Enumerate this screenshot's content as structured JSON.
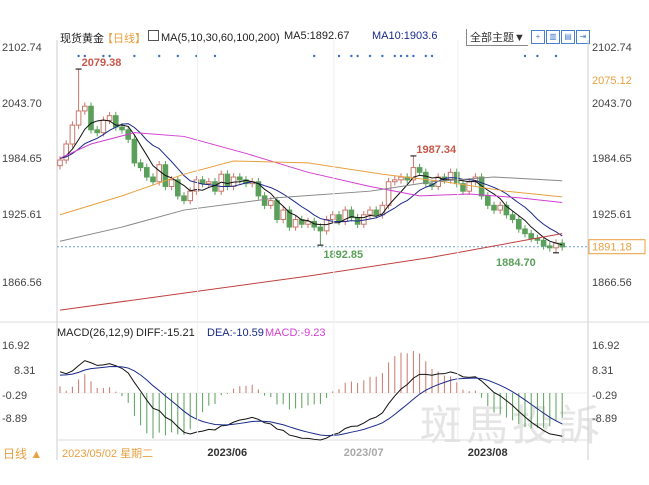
{
  "header": {
    "instrument": "现货黄金",
    "period": "【日线】",
    "ma_label": "MA(5,10,30,60,100,200)",
    "ma5": "MA5:1892.67",
    "ma10": "MA10:1903.6",
    "theme_button": "全部主题▼",
    "icons": [
      "crosshair-icon",
      "zoom-in-icon",
      "zoom-out-icon",
      "jump-end-icon"
    ]
  },
  "macd_header": {
    "label": "MACD(26,12,9)",
    "diff": "DIFF:-15.21",
    "dea": "DEA:-10.59",
    "macd": "MACD:-9.23"
  },
  "footer": {
    "period_button": "日线 ▲",
    "cursor_date": "2023/05/02 星期二"
  },
  "watermark": "斑馬投訴 ZEBRA",
  "colors": {
    "up": "#c9776b",
    "down": "#5aa05a",
    "ma5": "#111111",
    "ma10": "#1a2a8a",
    "ma30": "#d23fd2",
    "ma60": "#e8a040",
    "ma100": "#888888",
    "ma200": "#c04040",
    "last": "#e8a040"
  },
  "chart_data": [
    {
      "type": "candlestick",
      "title": "现货黄金 日线",
      "y_axis_labels": [
        "2102.74",
        "2043.70",
        "1984.65",
        "1925.61",
        "1866.56"
      ],
      "y_axis_right_labels": [
        "2102.74",
        "2075.12",
        "2043.70",
        "1984.65",
        "1925.61",
        "1866.56"
      ],
      "ylim": [
        1850,
        2110
      ],
      "last_price": "1891.18",
      "annotations": [
        {
          "text": "2079.38",
          "index": 3,
          "value": 2079.38
        },
        {
          "text": "1987.34",
          "index": 57,
          "value": 1987.34
        },
        {
          "text": "1892.85",
          "index": 42,
          "value": 1892.85
        },
        {
          "text": "1884.70",
          "index": 80,
          "value": 1884.7
        }
      ],
      "x_labels": [
        {
          "text": "2023/06",
          "index": 27
        },
        {
          "text": "2023/07",
          "index": 49
        },
        {
          "text": "2023/08",
          "index": 69
        }
      ],
      "closes": [
        1983,
        2000,
        2020,
        2035,
        2040,
        2015,
        2012,
        2025,
        2030,
        2018,
        2015,
        2005,
        1980,
        1975,
        1965,
        1960,
        1978,
        1955,
        1962,
        1945,
        1940,
        1950,
        1962,
        1958,
        1960,
        1950,
        1968,
        1955,
        1965,
        1962,
        1958,
        1960,
        1945,
        1935,
        1940,
        1920,
        1930,
        1912,
        1920,
        1915,
        1918,
        1912,
        1908,
        1920,
        1925,
        1918,
        1930,
        1922,
        1915,
        1925,
        1930,
        1925,
        1935,
        1960,
        1962,
        1965,
        1962,
        1975,
        1970,
        1958,
        1955,
        1965,
        1962,
        1970,
        1958,
        1950,
        1960,
        1965,
        1945,
        1935,
        1930,
        1935,
        1925,
        1920,
        1910,
        1905,
        1900,
        1898,
        1892,
        1890,
        1895,
        1891
      ],
      "ma_series": {
        "ma30": [
          [
            0,
            1985
          ],
          [
            5,
            2000
          ],
          [
            12,
            2012
          ],
          [
            20,
            2008
          ],
          [
            30,
            1990
          ],
          [
            40,
            1970
          ],
          [
            50,
            1955
          ],
          [
            58,
            1945
          ],
          [
            66,
            1947
          ],
          [
            74,
            1943
          ],
          [
            81,
            1938
          ]
        ],
        "ma60": [
          [
            0,
            1925
          ],
          [
            10,
            1945
          ],
          [
            20,
            1968
          ],
          [
            28,
            1982
          ],
          [
            40,
            1980
          ],
          [
            52,
            1968
          ],
          [
            62,
            1960
          ],
          [
            72,
            1950
          ],
          [
            81,
            1944
          ]
        ],
        "ma100": [
          [
            0,
            1897
          ],
          [
            10,
            1912
          ],
          [
            20,
            1930
          ],
          [
            35,
            1943
          ],
          [
            50,
            1950
          ],
          [
            60,
            1960
          ],
          [
            70,
            1965
          ],
          [
            81,
            1961
          ]
        ],
        "ma200": [
          [
            0,
            1824
          ],
          [
            20,
            1842
          ],
          [
            40,
            1860
          ],
          [
            60,
            1880
          ],
          [
            75,
            1898
          ],
          [
            81,
            1905
          ]
        ]
      }
    },
    {
      "type": "macd",
      "y_axis_labels": [
        "16.92",
        "8.31",
        "-0.29",
        "-8.89"
      ],
      "ylim": [
        -16.6,
        18.5
      ],
      "x_labels": [
        "2023/06",
        "2023/07",
        "2023/08"
      ]
    }
  ]
}
